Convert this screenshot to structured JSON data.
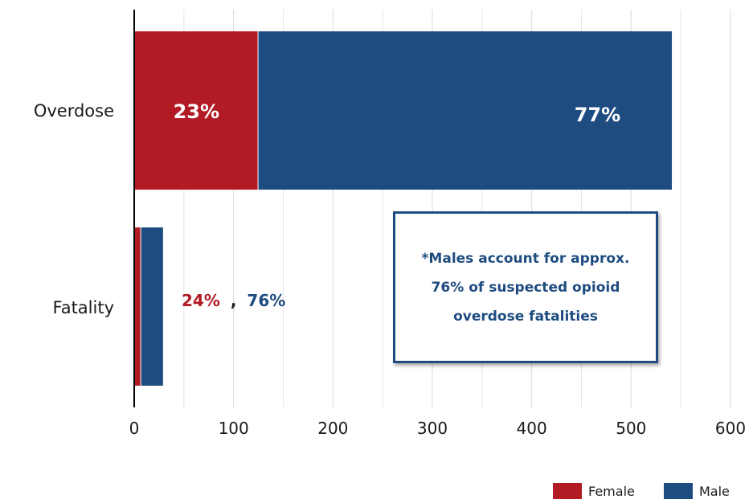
{
  "chart_data": {
    "type": "bar",
    "orientation": "horizontal",
    "stacked": true,
    "categories": [
      "Overdose",
      "Fatality"
    ],
    "series": [
      {
        "name": "Female",
        "color": "#b31b24",
        "values": [
          125,
          7
        ],
        "labels": [
          "23%",
          "24%"
        ]
      },
      {
        "name": "Male",
        "color": "#1f4c80",
        "values": [
          416,
          22
        ],
        "labels": [
          "77%",
          "76%"
        ]
      }
    ],
    "xlim": [
      0,
      600
    ],
    "xticks": [
      "0",
      "100",
      "200",
      "300",
      "400",
      "500",
      "600"
    ],
    "grid": true,
    "legend": "bottom-right",
    "inline_separator": ",",
    "annotation": "*Males account for approx. 76% of suspected opioid overdose fatalities"
  }
}
